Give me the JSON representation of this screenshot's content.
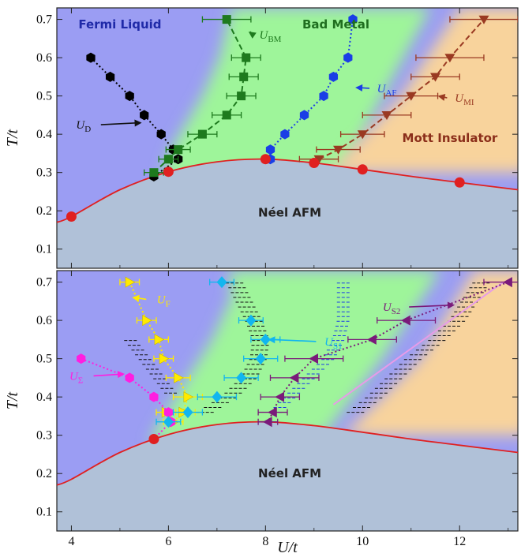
{
  "chart_data": [
    {
      "type": "scatter",
      "panel": "top",
      "xlim": [
        3.7,
        13.2
      ],
      "ylim": [
        0.05,
        0.73
      ],
      "xticks": [
        4,
        6,
        8,
        10,
        12
      ],
      "yticks": [
        0.1,
        0.2,
        0.3,
        0.4,
        0.5,
        0.6,
        0.7
      ],
      "xtick_labels_shown": false,
      "ylabel": "T/t",
      "neel_curve": {
        "color": "#e02020",
        "x": [
          3.7,
          4,
          5,
          6,
          7,
          8,
          9,
          10,
          11,
          12,
          13.2
        ],
        "y": [
          0.17,
          0.185,
          0.255,
          0.302,
          0.328,
          0.335,
          0.325,
          0.308,
          0.29,
          0.274,
          0.255
        ]
      },
      "neel_points": {
        "color": "#e02020",
        "x": [
          4,
          6,
          8,
          9,
          10,
          12
        ],
        "y": [
          0.185,
          0.302,
          0.335,
          0.325,
          0.308,
          0.274
        ]
      },
      "series": [
        {
          "name": "U_D",
          "color": "#000000",
          "marker": "hexagon",
          "line": "dotted",
          "x": [
            4.4,
            4.8,
            5.2,
            5.5,
            5.85,
            6.1,
            6.2,
            5.7
          ],
          "y": [
            0.6,
            0.55,
            0.5,
            0.45,
            0.4,
            0.36,
            0.335,
            0.29
          ]
        },
        {
          "name": "U_BM",
          "color": "#1e7a1e",
          "marker": "square",
          "line": "dashed",
          "x": [
            5.7,
            6.0,
            6.2,
            6.7,
            7.2,
            7.5,
            7.55,
            7.6,
            7.2
          ],
          "y": [
            0.3,
            0.335,
            0.36,
            0.4,
            0.45,
            0.5,
            0.55,
            0.6,
            0.7
          ],
          "xerr": [
            0.2,
            0.2,
            0.25,
            0.3,
            0.3,
            0.3,
            0.3,
            0.3,
            0.5
          ]
        },
        {
          "name": "U_AF",
          "color": "#1a3ee6",
          "marker": "hexagon",
          "line": "dotted",
          "x": [
            8.1,
            8.1,
            8.4,
            8.8,
            9.2,
            9.4,
            9.7,
            9.8
          ],
          "y": [
            0.335,
            0.36,
            0.4,
            0.45,
            0.5,
            0.55,
            0.6,
            0.7
          ]
        },
        {
          "name": "U_MI",
          "color": "#9a3a22",
          "marker": "triangle-down",
          "line": "dashed",
          "x": [
            9.1,
            9.5,
            10.0,
            10.5,
            11.0,
            11.5,
            11.8,
            12.5
          ],
          "y": [
            0.335,
            0.36,
            0.4,
            0.45,
            0.5,
            0.55,
            0.6,
            0.7
          ],
          "xerr": [
            0.4,
            0.45,
            0.45,
            0.5,
            0.55,
            0.5,
            0.7,
            0.7
          ]
        }
      ],
      "region_labels": [
        {
          "text": "Fermi Liquid",
          "x": 5.0,
          "y": 0.676,
          "color": "#1f2aa8"
        },
        {
          "text": "Bad Metal",
          "x": 9.45,
          "y": 0.676,
          "color": "#1f6e1f"
        },
        {
          "text": "Mott Insulator",
          "x": 11.8,
          "y": 0.38,
          "color": "#8b2e1a"
        },
        {
          "text": "Néel AFM",
          "x": 8.5,
          "y": 0.185,
          "color": "#222222"
        }
      ],
      "annotations": [
        {
          "base": "U",
          "sub": "BM",
          "color": "#1e7a1e",
          "tx": 8.1,
          "ty": 0.66,
          "ax": 7.65,
          "ay": 0.668
        },
        {
          "base": "U",
          "sub": "AF",
          "color": "#1a3ee6",
          "tx": 10.5,
          "ty": 0.52,
          "ax": 9.85,
          "ay": 0.522
        },
        {
          "base": "U",
          "sub": "MI",
          "color": "#9a3a22",
          "tx": 12.1,
          "ty": 0.495,
          "ax": 11.55,
          "ay": 0.5
        },
        {
          "base": "U",
          "sub": "D",
          "color": "#111111",
          "tx": 4.25,
          "ty": 0.425,
          "ax": 5.45,
          "ay": 0.43
        }
      ]
    },
    {
      "type": "scatter",
      "panel": "bottom",
      "xlim": [
        3.7,
        13.2
      ],
      "ylim": [
        0.05,
        0.73
      ],
      "xticks": [
        4,
        6,
        8,
        10,
        12
      ],
      "yticks": [
        0.1,
        0.2,
        0.3,
        0.4,
        0.5,
        0.6,
        0.7
      ],
      "xtick_labels_shown": true,
      "xlabel": "U/t",
      "ylabel": "T/t",
      "neel_curve": {
        "color": "#e02020",
        "x": [
          3.7,
          4,
          5,
          6,
          7,
          8,
          9,
          10,
          11,
          12,
          13.2
        ],
        "y": [
          0.17,
          0.185,
          0.255,
          0.302,
          0.328,
          0.335,
          0.325,
          0.308,
          0.29,
          0.274,
          0.255
        ]
      },
      "neel_points": {
        "color": "#e02020",
        "x": [
          5.7
        ],
        "y": [
          0.29
        ]
      },
      "series": [
        {
          "name": "U_F",
          "color": "#ffea00",
          "marker": "triangle-right",
          "line": "dotted",
          "x": [
            5.2,
            5.55,
            5.8,
            5.9,
            6.2,
            6.4,
            6.3,
            6.1,
            5.95
          ],
          "y": [
            0.7,
            0.6,
            0.55,
            0.5,
            0.45,
            0.4,
            0.36,
            0.335,
            0.36
          ],
          "xerr": [
            0.2,
            0.2,
            0.2,
            0.2,
            0.25,
            0.3,
            0.25,
            0.2,
            0.2
          ]
        },
        {
          "name": "U_Σ",
          "color": "#ff1ee0",
          "marker": "hexagon",
          "line": "dotted",
          "x": [
            4.2,
            5.2,
            5.7,
            6.0,
            6.05,
            5.7
          ],
          "y": [
            0.5,
            0.45,
            0.4,
            0.36,
            0.335,
            0.29
          ]
        },
        {
          "name": "U_S1",
          "color": "#12b6ef",
          "marker": "diamond",
          "line": "none",
          "x": [
            7.1,
            7.7,
            8.0,
            7.9,
            7.5,
            7.0,
            6.4,
            6.0
          ],
          "y": [
            0.7,
            0.6,
            0.55,
            0.5,
            0.45,
            0.4,
            0.36,
            0.335
          ],
          "xerr": [
            0.25,
            0.25,
            0.3,
            0.35,
            0.35,
            0.4,
            0.3,
            0.25
          ]
        },
        {
          "name": "U_S2",
          "color": "#7a1a7a",
          "marker": "triangle-left",
          "line": "dotted",
          "x": [
            13.0,
            10.9,
            10.2,
            9.0,
            8.6,
            8.3,
            8.15,
            8.05
          ],
          "y": [
            0.7,
            0.6,
            0.55,
            0.5,
            0.45,
            0.4,
            0.36,
            0.335
          ],
          "xerr": [
            0.5,
            0.6,
            0.5,
            0.6,
            0.5,
            0.4,
            0.3,
            0.2
          ]
        }
      ],
      "region_labels": [
        {
          "text": "Néel AFM",
          "x": 8.5,
          "y": 0.19,
          "color": "#222222"
        }
      ],
      "annotations": [
        {
          "base": "U",
          "sub": "F",
          "color": "#ffea00",
          "tx": 5.9,
          "ty": 0.655,
          "ax": 5.25,
          "ay": 0.66
        },
        {
          "base": "U",
          "sub": "Σ",
          "color": "#ff1ee0",
          "tx": 4.1,
          "ty": 0.455,
          "ax": 5.1,
          "ay": 0.46
        },
        {
          "base": "U",
          "sub": "S1",
          "color": "#12b6ef",
          "tx": 9.4,
          "ty": 0.545,
          "ax": 8.05,
          "ay": 0.55
        },
        {
          "base": "U",
          "sub": "S2",
          "color": "#7a1a7a",
          "tx": 10.6,
          "ty": 0.635,
          "ax": 11.9,
          "ay": 0.64
        }
      ]
    }
  ]
}
